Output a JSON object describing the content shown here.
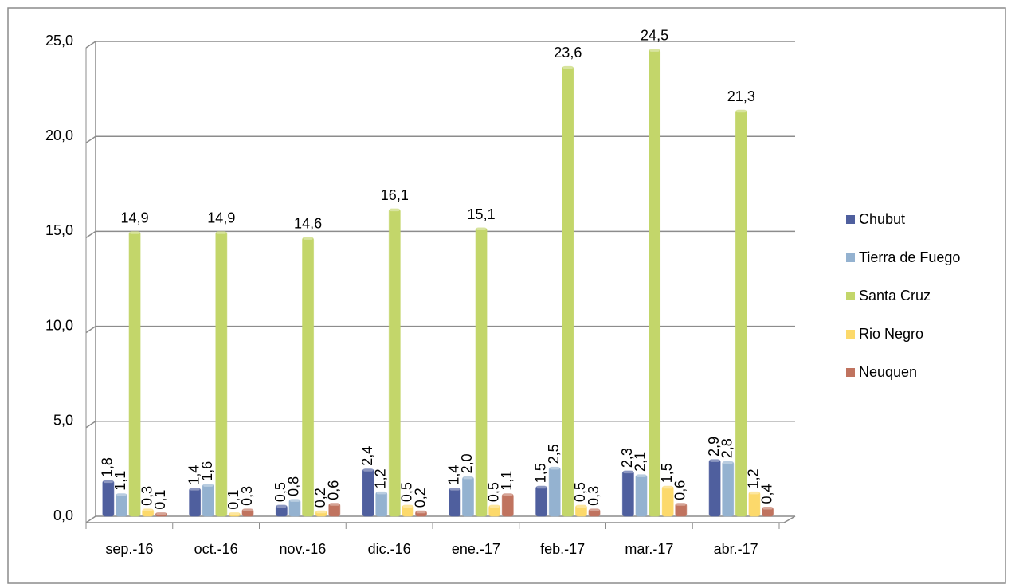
{
  "chart_data": {
    "type": "bar",
    "categories": [
      "sep.-16",
      "oct.-16",
      "nov.-16",
      "dic.-16",
      "ene.-17",
      "feb.-17",
      "mar.-17",
      "abr.-17"
    ],
    "series": [
      {
        "name": "Chubut",
        "color": "#4f5f9e",
        "values": [
          1.8,
          1.4,
          0.5,
          2.4,
          1.4,
          1.5,
          2.3,
          2.9
        ],
        "value_labels": [
          "1,8",
          "1,4",
          "0,5",
          "2,4",
          "1,4",
          "1,5",
          "2,3",
          "2,9"
        ]
      },
      {
        "name": "Tierra de Fuego",
        "color": "#94b2d0",
        "values": [
          1.1,
          1.6,
          0.8,
          1.2,
          2.0,
          2.5,
          2.1,
          2.8
        ],
        "value_labels": [
          "1,1",
          "1,6",
          "0,8",
          "1,2",
          "2,0",
          "2,5",
          "2,1",
          "2,8"
        ]
      },
      {
        "name": "Santa Cruz",
        "color": "#c3d66a",
        "values": [
          14.9,
          14.9,
          14.6,
          16.1,
          15.1,
          23.6,
          24.5,
          21.3
        ],
        "value_labels": [
          "14,9",
          "14,9",
          "14,6",
          "16,1",
          "15,1",
          "23,6",
          "24,5",
          "21,3"
        ]
      },
      {
        "name": "Rio Negro",
        "color": "#fcd96b",
        "values": [
          0.3,
          0.1,
          0.2,
          0.5,
          0.5,
          0.5,
          1.5,
          1.2
        ],
        "value_labels": [
          "0,3",
          "0,1",
          "0,2",
          "0,5",
          "0,5",
          "0,5",
          "1,5",
          "1,2"
        ]
      },
      {
        "name": "Neuquen",
        "color": "#c0735f",
        "values": [
          0.1,
          0.3,
          0.6,
          0.2,
          1.1,
          0.3,
          0.6,
          0.4
        ],
        "value_labels": [
          "0,1",
          "0,3",
          "0,6",
          "0,2",
          "1,1",
          "0,3",
          "0,6",
          "0,4"
        ]
      }
    ],
    "ylim": [
      0,
      25
    ],
    "yticks": [
      {
        "value": 0,
        "label": "0,0"
      },
      {
        "value": 5,
        "label": "5,0"
      },
      {
        "value": 10,
        "label": "10,0"
      },
      {
        "value": 15,
        "label": "15,0"
      },
      {
        "value": 20,
        "label": "20,0"
      },
      {
        "value": 25,
        "label": "25,0"
      }
    ],
    "grid": true,
    "legend": "right"
  }
}
